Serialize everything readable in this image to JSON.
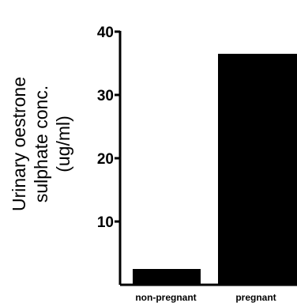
{
  "chart_data": {
    "type": "bar",
    "title": "",
    "xlabel": "",
    "ylabel_lines": [
      "Urinary oestrone",
      "sulphate conc.",
      "(ug/ml)"
    ],
    "categories": [
      "non-pregnant",
      "pregnant"
    ],
    "values": [
      2.5,
      36.5
    ],
    "ylim": [
      0,
      40
    ],
    "yticks": [
      10,
      20,
      30,
      40
    ],
    "bar_color": "#000000",
    "grid": false,
    "legend": "none"
  }
}
